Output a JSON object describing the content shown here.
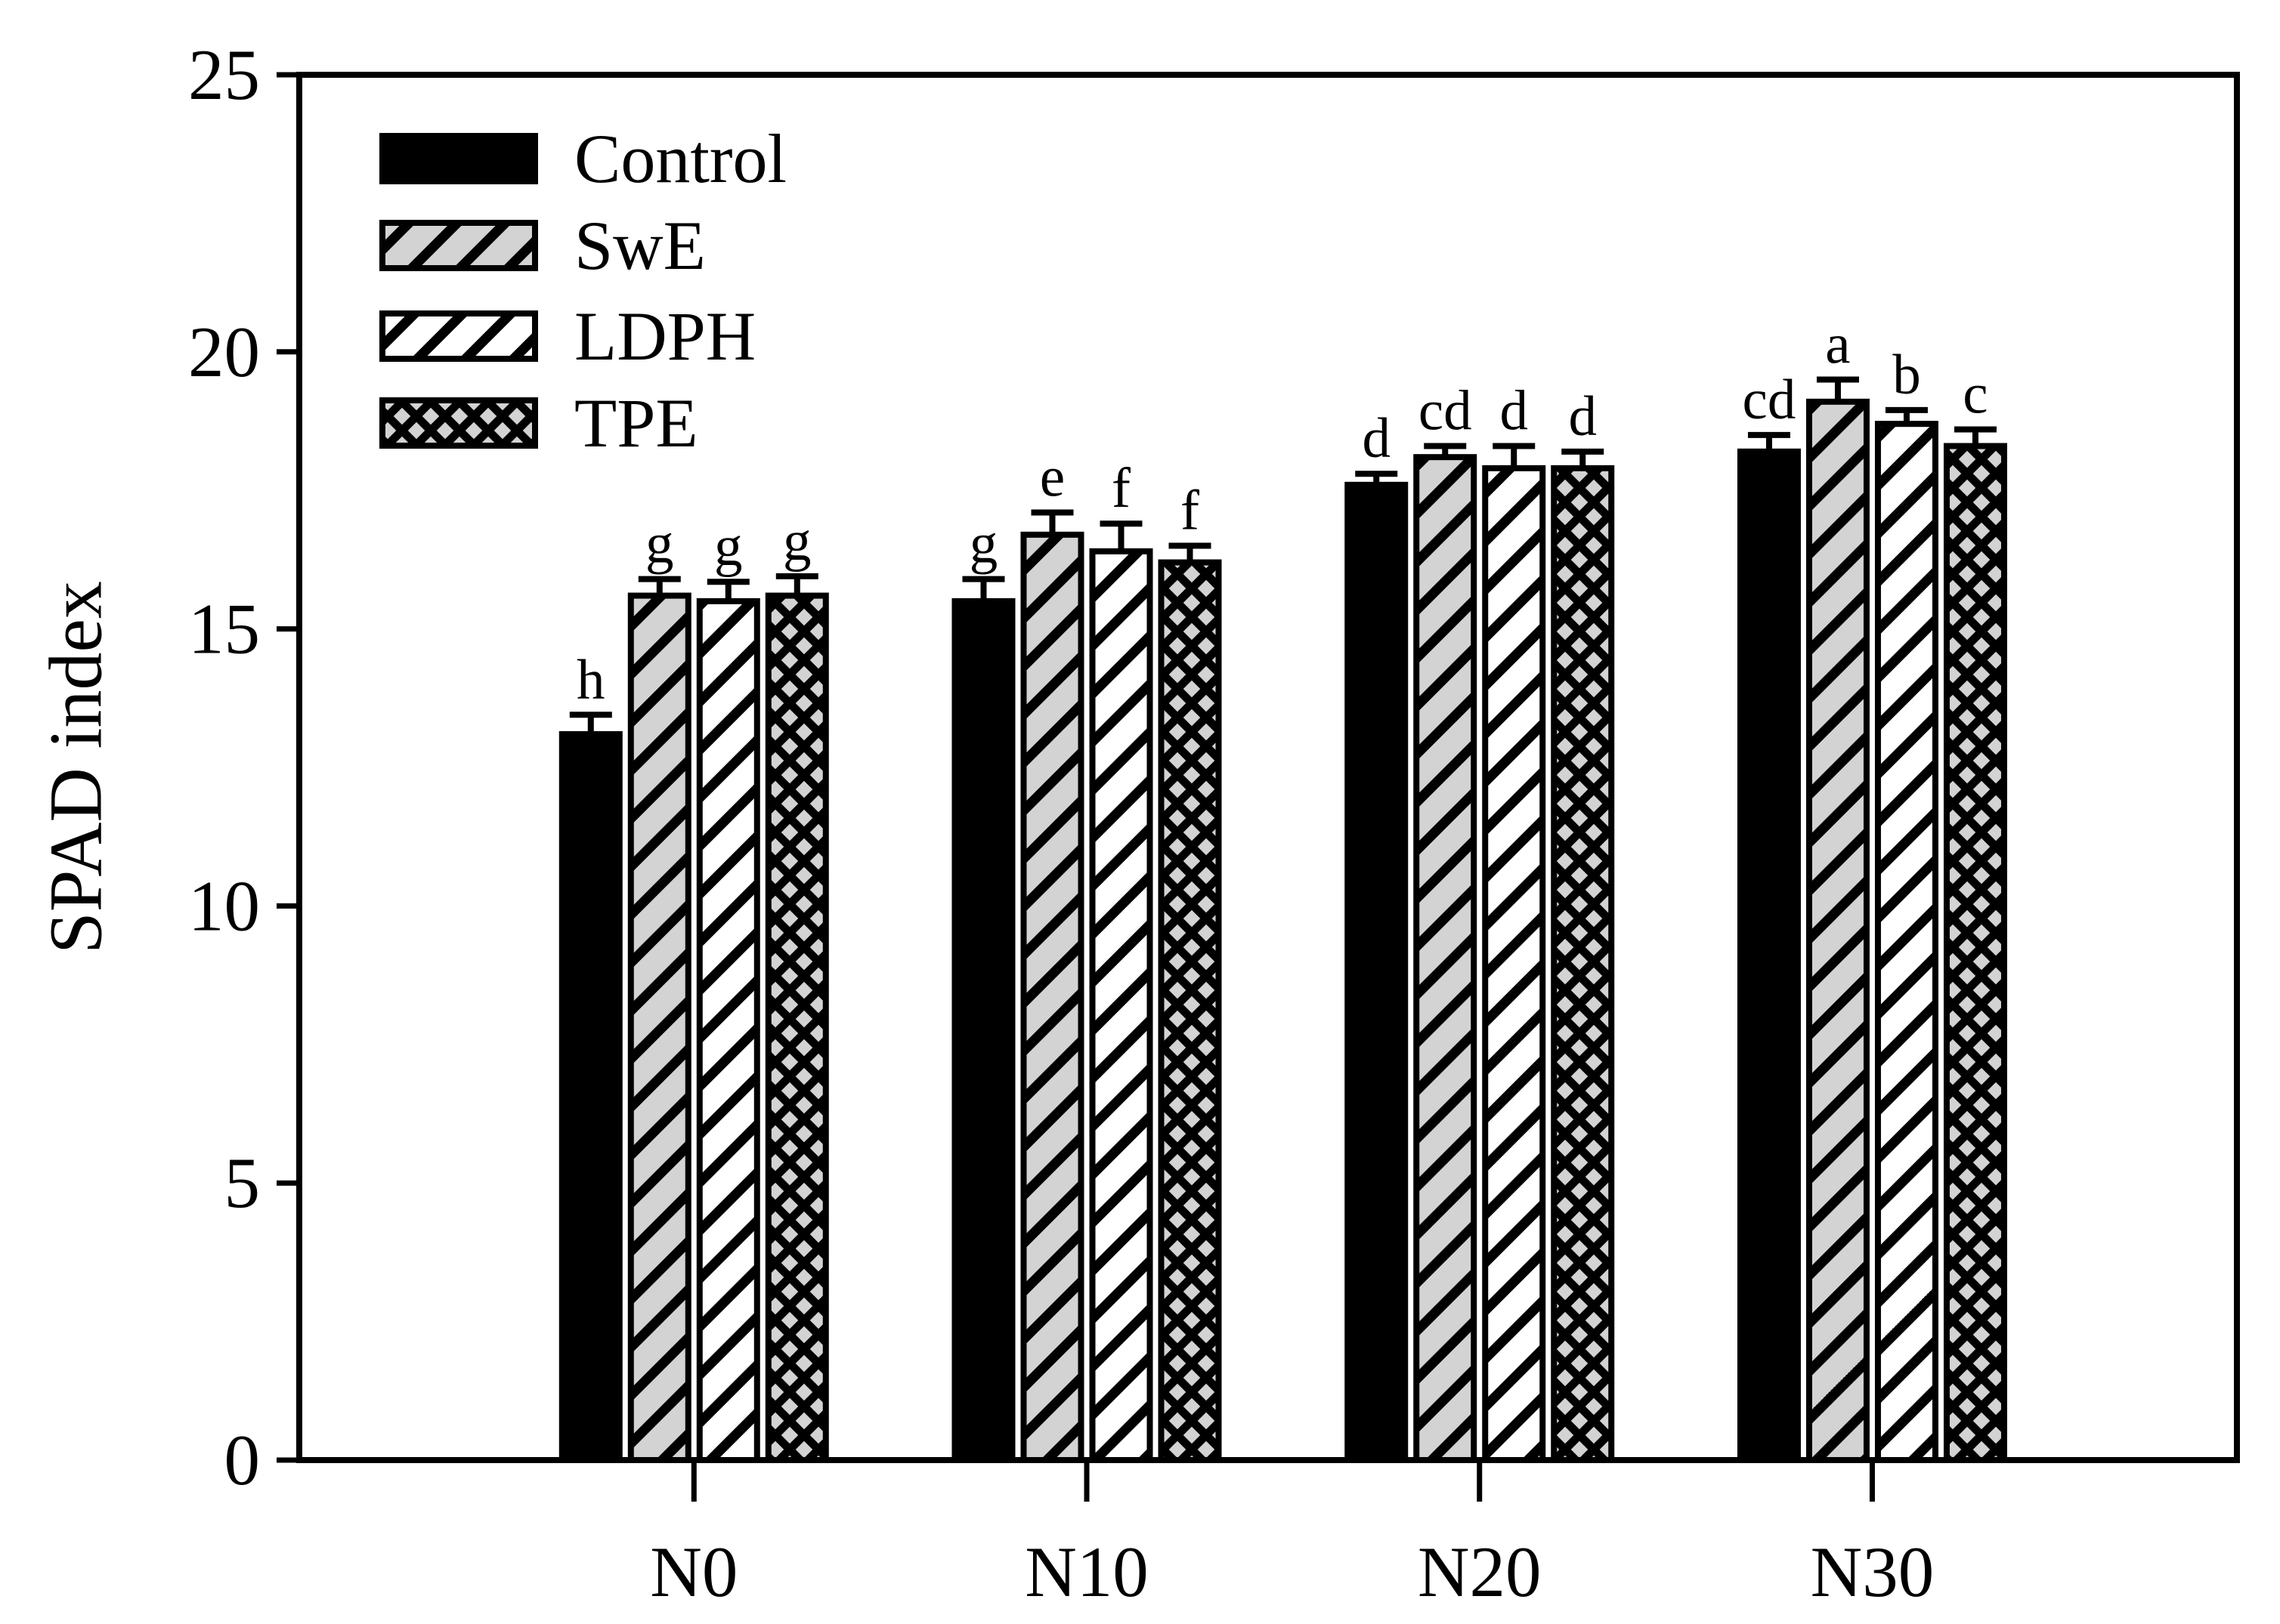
{
  "chart_data": {
    "type": "bar",
    "title": "",
    "xlabel": "",
    "ylabel": "SPAD index",
    "ylim": [
      0,
      25
    ],
    "yticks": [
      0,
      5,
      10,
      15,
      20,
      25
    ],
    "categories": [
      "N0",
      "N10",
      "N20",
      "N30"
    ],
    "grid": false,
    "legend_position": "upper-left",
    "frame": "full-box",
    "series": [
      {
        "name": "Control",
        "fill_style": "solid-black",
        "values": [
          13.1,
          15.5,
          17.6,
          18.2
        ],
        "errors": [
          0.35,
          0.4,
          0.2,
          0.3
        ],
        "sig_letters": [
          "h",
          "g",
          "d",
          "cd"
        ]
      },
      {
        "name": "SwE",
        "fill_style": "gray-diagonal-hatch",
        "values": [
          15.6,
          16.7,
          18.1,
          19.1
        ],
        "errors": [
          0.3,
          0.4,
          0.2,
          0.4
        ],
        "sig_letters": [
          "g",
          "e",
          "cd",
          "a"
        ]
      },
      {
        "name": "LDPH",
        "fill_style": "white-diagonal-hatch",
        "values": [
          15.5,
          16.4,
          17.9,
          18.7
        ],
        "errors": [
          0.35,
          0.5,
          0.4,
          0.25
        ],
        "sig_letters": [
          "g",
          "f",
          "d",
          "b"
        ]
      },
      {
        "name": "TPE",
        "fill_style": "gray-crosshatch",
        "values": [
          15.6,
          16.2,
          17.9,
          18.3
        ],
        "errors": [
          0.35,
          0.3,
          0.3,
          0.3
        ],
        "sig_letters": [
          "g",
          "f",
          "d",
          "c"
        ]
      }
    ],
    "colors": {
      "foreground": "#000000",
      "hatch_gray": "#d3d3d3",
      "background": "#ffffff"
    }
  }
}
